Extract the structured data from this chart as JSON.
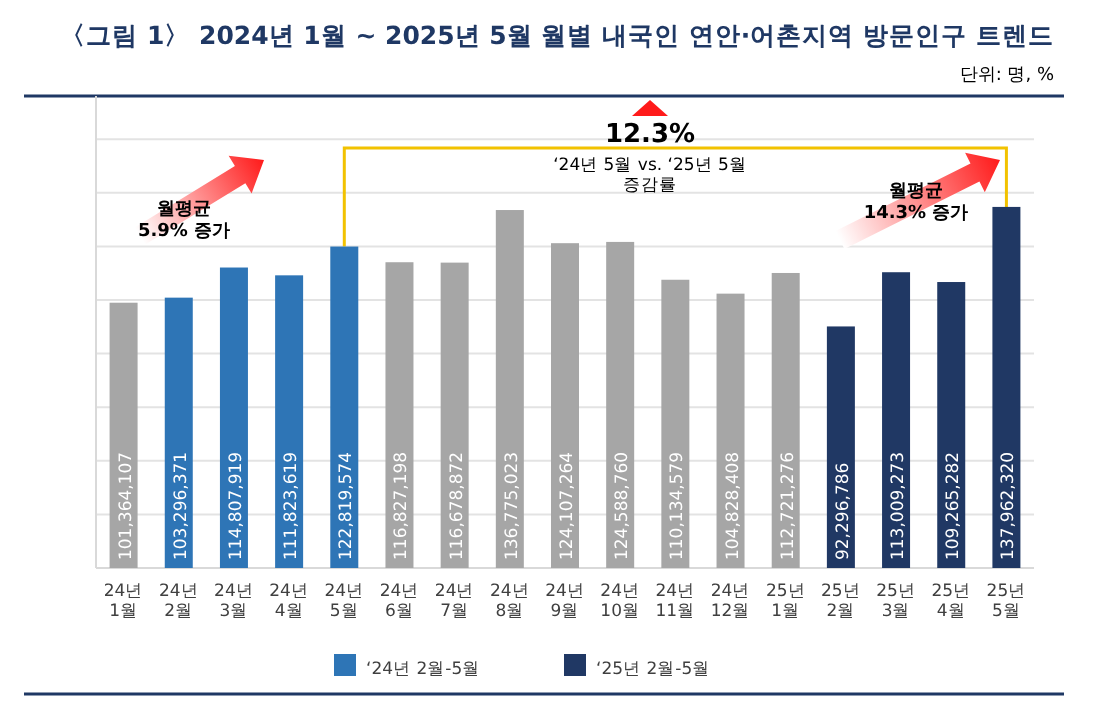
{
  "chart_data": {
    "type": "bar",
    "title": "〈그림 1〉 2024년 1월 ~ 2025년 5월 월별 내국인 연안·어촌지역 방문인구 트렌드",
    "categories": [
      "24년\n1월",
      "24년\n2월",
      "24년\n3월",
      "24년\n4월",
      "24년\n5월",
      "24년\n6월",
      "24년\n7월",
      "24년\n8월",
      "24년\n9월",
      "24년\n10월",
      "24년\n11월",
      "24년\n12월",
      "25년\n1월",
      "25년\n2월",
      "25년\n3월",
      "25년\n4월",
      "25년\n5월"
    ],
    "series": [
      {
        "color": "#a6a6a6",
        "values": [
          101364107,
          null,
          null,
          null,
          null,
          116827198,
          116678872,
          136775023,
          124107264,
          124588760,
          110134579,
          104828408,
          112721276,
          null,
          null,
          null,
          null
        ],
        "value_labels": [
          "101,364,107",
          null,
          null,
          null,
          null,
          "116,827,198",
          "116,678,872",
          "136,775,023",
          "124,107,264",
          "124,588,760",
          "110,134,579",
          "104,828,408",
          "112,721,276",
          null,
          null,
          null,
          null
        ]
      },
      {
        "name": "‘24년 2월-5월",
        "color": "#2e75b6",
        "values": [
          null,
          103296371,
          114807919,
          111823619,
          122819574,
          null,
          null,
          null,
          null,
          null,
          null,
          null,
          null,
          null,
          null,
          null,
          null
        ],
        "value_labels": [
          null,
          "103,296,371",
          "114,807,919",
          "111,823,619",
          "122,819,574",
          null,
          null,
          null,
          null,
          null,
          null,
          null,
          null,
          null,
          null,
          null,
          null
        ]
      },
      {
        "name": "‘25년 2월-5월",
        "color": "#203864",
        "values": [
          null,
          null,
          null,
          null,
          null,
          null,
          null,
          null,
          null,
          null,
          null,
          null,
          null,
          92296786,
          113009273,
          109265282,
          137962320
        ],
        "value_labels": [
          null,
          null,
          null,
          null,
          null,
          null,
          null,
          null,
          null,
          null,
          null,
          null,
          null,
          "92,296,786",
          "113,009,273",
          "109,265,282",
          "137,962,320"
        ]
      }
    ],
    "tick_labels": "x",
    "grid": "y",
    "legend": "bottom",
    "annotations": [
      "단위: 명, %",
      "12.3%",
      "‘24년 5월 vs. ‘25년 5월\n증감률",
      "월평균\n5.9% 증가",
      "월평균\n14.3% 증가"
    ]
  }
}
